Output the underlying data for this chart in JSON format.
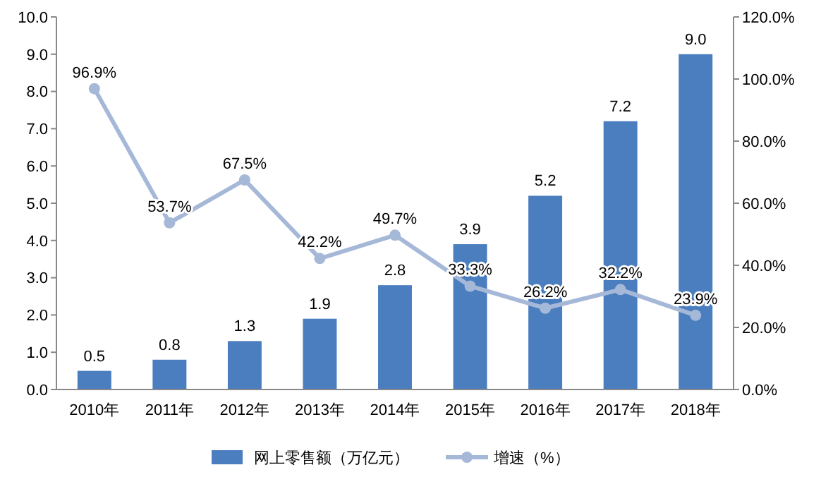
{
  "chart_data": {
    "type": "bar",
    "categories": [
      "2010年",
      "2011年",
      "2012年",
      "2013年",
      "2014年",
      "2015年",
      "2016年",
      "2017年",
      "2018年"
    ],
    "series": [
      {
        "name": "网上零售额（万亿元）",
        "color": "#4a7ebf",
        "values": [
          0.5,
          0.8,
          1.3,
          1.9,
          2.8,
          3.9,
          5.2,
          7.2,
          9.0
        ],
        "value_labels": [
          "0.5",
          "0.8",
          "1.3",
          "1.9",
          "2.8",
          "3.9",
          "5.2",
          "7.2",
          "9.0"
        ]
      },
      {
        "name": "增速（%）",
        "type": "line",
        "axis": "y2",
        "color": "#a6b8d8",
        "values": [
          96.9,
          53.7,
          67.5,
          42.2,
          49.7,
          33.3,
          26.2,
          32.2,
          23.9
        ],
        "value_labels": [
          "96.9%",
          "53.7%",
          "67.5%",
          "42.2%",
          "49.7%",
          "33.3%",
          "26.2%",
          "32.2%",
          "23.9%"
        ]
      }
    ],
    "ylim": [
      0,
      10
    ],
    "yticks": [
      {
        "value": 0,
        "label": "0.0"
      },
      {
        "value": 1,
        "label": "1.0"
      },
      {
        "value": 2,
        "label": "2.0"
      },
      {
        "value": 3,
        "label": "3.0"
      },
      {
        "value": 4,
        "label": "4.0"
      },
      {
        "value": 5,
        "label": "5.0"
      },
      {
        "value": 6,
        "label": "6.0"
      },
      {
        "value": 7,
        "label": "7.0"
      },
      {
        "value": 8,
        "label": "8.0"
      },
      {
        "value": 9,
        "label": "9.0"
      },
      {
        "value": 10,
        "label": "10.0"
      }
    ],
    "y2lim": [
      0,
      120
    ],
    "y2ticks": [
      {
        "value": 0,
        "label": "0.0%"
      },
      {
        "value": 20,
        "label": "20.0%"
      },
      {
        "value": 40,
        "label": "40.0%"
      },
      {
        "value": 60,
        "label": "60.0%"
      },
      {
        "value": 80,
        "label": "80.0%"
      },
      {
        "value": 100,
        "label": "100.0%"
      },
      {
        "value": 120,
        "label": "120.0%"
      }
    ],
    "marker": "circle",
    "legend": "bottom",
    "grid": false
  }
}
